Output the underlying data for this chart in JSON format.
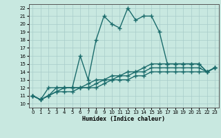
{
  "title": "",
  "xlabel": "Humidex (Indice chaleur)",
  "xlim": [
    -0.5,
    23.5
  ],
  "ylim": [
    9.5,
    22.5
  ],
  "xticks": [
    0,
    1,
    2,
    3,
    4,
    5,
    6,
    7,
    8,
    9,
    10,
    11,
    12,
    13,
    14,
    15,
    16,
    17,
    18,
    19,
    20,
    21,
    22,
    23
  ],
  "yticks": [
    10,
    11,
    12,
    13,
    14,
    15,
    16,
    17,
    18,
    19,
    20,
    21,
    22
  ],
  "bg_color": "#c8e8e0",
  "grid_color": "#a8ccca",
  "line_color": "#1a6b6b",
  "main_x": [
    0,
    1,
    2,
    3,
    4,
    5,
    6,
    7,
    8,
    9,
    10,
    11,
    12,
    13,
    14,
    15,
    16,
    17,
    18,
    19,
    20,
    21,
    22,
    23
  ],
  "main_y": [
    11,
    10.5,
    12,
    12,
    12,
    12,
    16,
    13,
    18,
    21,
    20,
    19.5,
    22,
    20.5,
    21,
    21,
    19,
    15,
    15,
    15,
    15,
    15,
    14,
    14.5
  ],
  "ref1_x": [
    0,
    1,
    2,
    3,
    4,
    5,
    6,
    7,
    8,
    9,
    10,
    11,
    12,
    13,
    14,
    15,
    16,
    17,
    18,
    19,
    20,
    21,
    22,
    23
  ],
  "ref1_y": [
    11,
    10.5,
    11,
    12,
    12,
    12,
    12,
    12.5,
    13,
    13,
    13.5,
    13.5,
    14,
    14,
    14.5,
    15,
    15,
    15,
    15,
    15,
    15,
    15,
    14,
    14.5
  ],
  "ref2_x": [
    0,
    1,
    2,
    3,
    4,
    5,
    6,
    7,
    8,
    9,
    10,
    11,
    12,
    13,
    14,
    15,
    16,
    17,
    18,
    19,
    20,
    21,
    22,
    23
  ],
  "ref2_y": [
    11,
    10.5,
    11,
    11.5,
    12,
    12,
    12,
    12,
    12.5,
    13,
    13,
    13.5,
    13.5,
    14,
    14,
    14.5,
    14.5,
    14.5,
    14.5,
    14.5,
    14.5,
    14.5,
    14,
    14.5
  ],
  "ref3_x": [
    0,
    1,
    2,
    3,
    4,
    5,
    6,
    7,
    8,
    9,
    10,
    11,
    12,
    13,
    14,
    15,
    16,
    17,
    18,
    19,
    20,
    21,
    22,
    23
  ],
  "ref3_y": [
    11,
    10.5,
    11,
    11.5,
    11.5,
    11.5,
    12,
    12,
    12,
    12.5,
    13,
    13,
    13,
    13.5,
    13.5,
    14,
    14,
    14,
    14,
    14,
    14,
    14,
    14,
    14.5
  ],
  "marker": "+",
  "marker_size": 4,
  "line_width": 1.0
}
